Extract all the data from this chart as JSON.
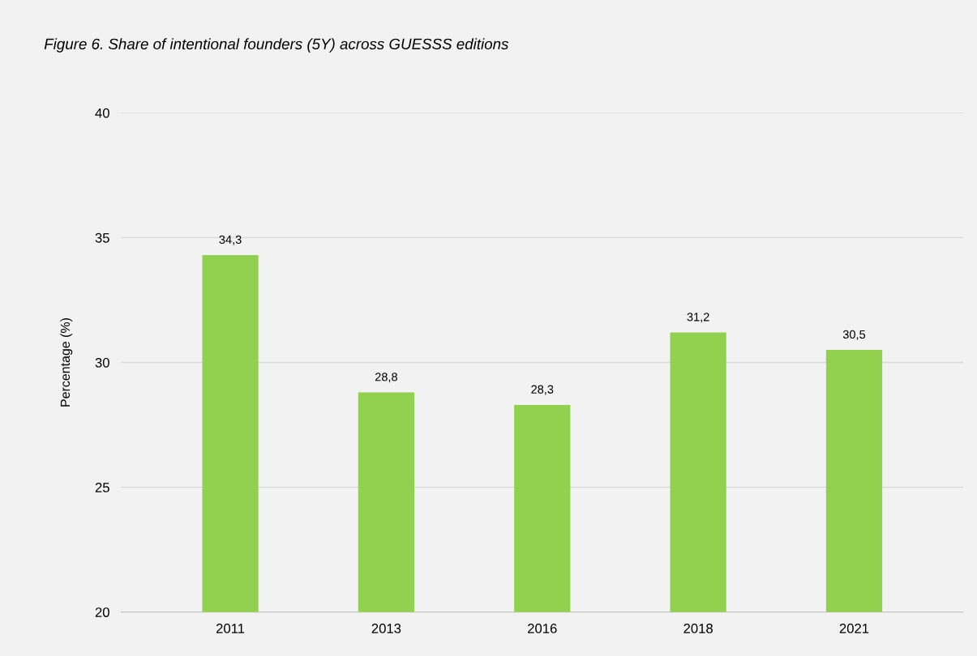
{
  "chart_data": {
    "type": "bar",
    "title": "Figure 6. Share of intentional founders (5Y) across GUESSS editions",
    "ylabel": "Percentage (%)",
    "categories": [
      "2011",
      "2013",
      "2016",
      "2018",
      "2021"
    ],
    "values": [
      34.3,
      28.8,
      28.3,
      31.2,
      30.5
    ],
    "value_labels": [
      "34,3",
      "28,8",
      "28,3",
      "31,2",
      "30,5"
    ],
    "color": "#92d050",
    "ylim": [
      20,
      40
    ],
    "yticks": [
      20,
      25,
      30,
      35,
      40
    ],
    "grid": "y",
    "legend": false
  }
}
